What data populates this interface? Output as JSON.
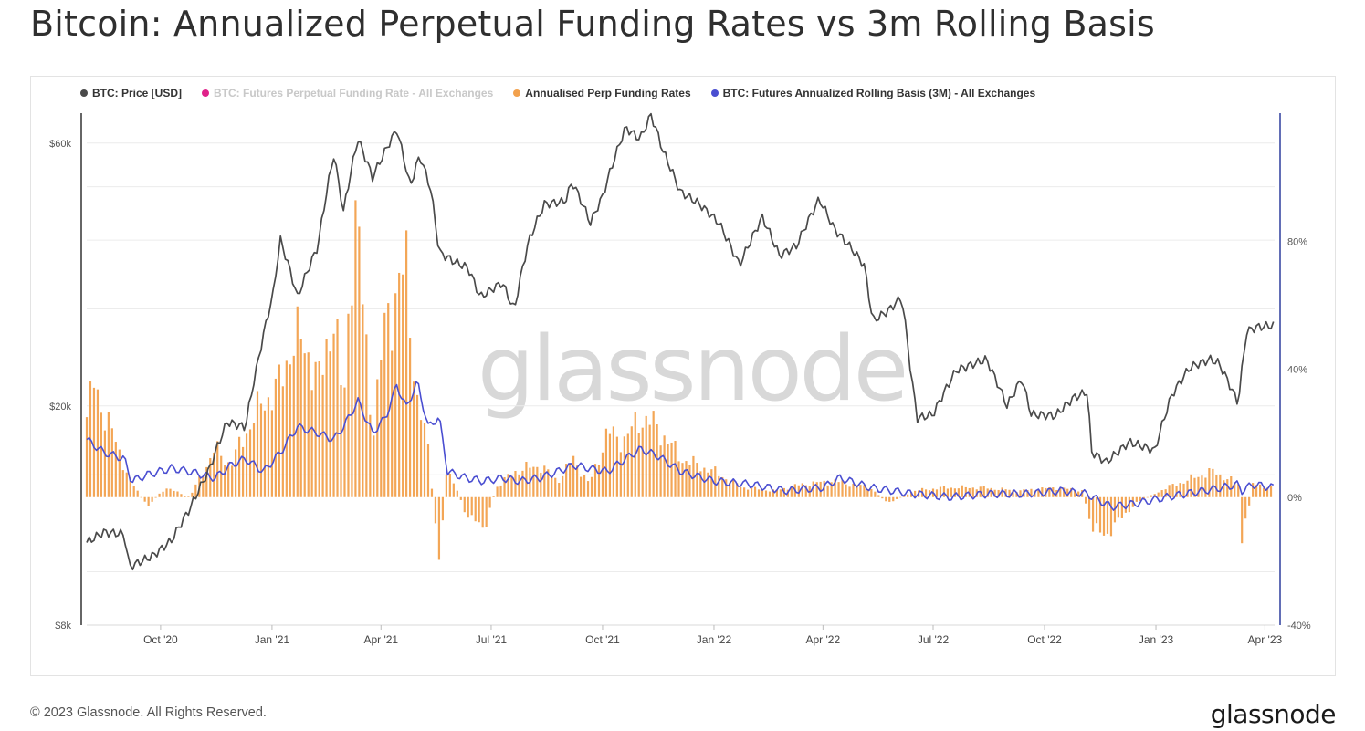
{
  "title": "Bitcoin: Annualized Perpetual Funding Rates vs 3m Rolling Basis",
  "legend": [
    {
      "label": "BTC: Price [USD]",
      "color": "#4a4a4a",
      "disabled": false
    },
    {
      "label": "BTC: Futures Perpetual Funding Rate - All Exchanges",
      "color": "#e0218a",
      "disabled": true
    },
    {
      "label": "Annualised Perp Funding Rates",
      "color": "#f2a14d",
      "disabled": false
    },
    {
      "label": "BTC: Futures Annualized Rolling Basis (3M) - All Exchanges",
      "color": "#4a4ed1",
      "disabled": false
    }
  ],
  "watermark": "glassnode",
  "footer": {
    "copyright": "© 2023 Glassnode. All Rights Reserved.",
    "logo": "glassnode"
  },
  "chart_data": {
    "type": "line",
    "x_ticks": [
      "Oct '20",
      "Jan '21",
      "Apr '21",
      "Jul '21",
      "Oct '21",
      "Jan '22",
      "Apr '22",
      "Jul '22",
      "Oct '22",
      "Jan '23",
      "Apr '23"
    ],
    "x_tick_dates": [
      "2020-10-01",
      "2021-01-01",
      "2021-04-01",
      "2021-07-01",
      "2021-10-01",
      "2022-01-01",
      "2022-04-01",
      "2022-07-01",
      "2022-10-01",
      "2023-01-01",
      "2023-04-01"
    ],
    "xlim": [
      "2020-08-01",
      "2023-04-09"
    ],
    "y_left": {
      "ticks": [
        "$8k",
        "$20k",
        "$60k"
      ],
      "tick_values": [
        8000,
        20000,
        60000
      ],
      "scale": "log",
      "ylim": [
        8000,
        68000
      ]
    },
    "y_right": {
      "ticks": [
        "-40%",
        "0%",
        "40%",
        "80%"
      ],
      "tick_values": [
        -40,
        0,
        40,
        80
      ],
      "ylim": [
        -40,
        120
      ]
    },
    "series": [
      {
        "name": "BTC: Price [USD]",
        "axis": "left",
        "style": "line",
        "color": "#4a4a4a",
        "x": [
          "2020-08-01",
          "2020-08-15",
          "2020-09-01",
          "2020-09-05",
          "2020-09-25",
          "2020-10-10",
          "2020-10-25",
          "2020-11-10",
          "2020-11-25",
          "2020-12-10",
          "2020-12-20",
          "2021-01-02",
          "2021-01-08",
          "2021-01-22",
          "2021-02-08",
          "2021-02-21",
          "2021-03-01",
          "2021-03-13",
          "2021-03-25",
          "2021-04-14",
          "2021-04-25",
          "2021-05-03",
          "2021-05-12",
          "2021-05-19",
          "2021-06-01",
          "2021-06-12",
          "2021-06-22",
          "2021-07-10",
          "2021-07-20",
          "2021-08-01",
          "2021-08-14",
          "2021-08-31",
          "2021-09-06",
          "2021-09-21",
          "2021-10-01",
          "2021-10-20",
          "2021-11-01",
          "2021-11-10",
          "2021-11-20",
          "2021-12-04",
          "2021-12-20",
          "2022-01-05",
          "2022-01-22",
          "2022-02-10",
          "2022-02-24",
          "2022-03-10",
          "2022-03-29",
          "2022-04-10",
          "2022-04-25",
          "2022-05-05",
          "2022-05-12",
          "2022-05-25",
          "2022-06-05",
          "2022-06-13",
          "2022-06-18",
          "2022-07-01",
          "2022-07-20",
          "2022-08-14",
          "2022-08-31",
          "2022-09-12",
          "2022-09-20",
          "2022-10-10",
          "2022-10-25",
          "2022-11-05",
          "2022-11-09",
          "2022-11-21",
          "2022-12-10",
          "2022-12-31",
          "2023-01-14",
          "2023-01-29",
          "2023-02-15",
          "2023-02-22",
          "2023-03-10",
          "2023-03-17",
          "2023-03-25",
          "2023-04-08"
        ],
        "y": [
          11300,
          11800,
          11700,
          10200,
          10700,
          11400,
          13000,
          15300,
          18700,
          18300,
          23800,
          32000,
          40000,
          31500,
          39000,
          57000,
          45000,
          61000,
          52000,
          63500,
          50000,
          57000,
          49500,
          38000,
          36500,
          35600,
          31500,
          33500,
          29800,
          39800,
          46500,
          47000,
          51000,
          43000,
          48000,
          64000,
          61000,
          67500,
          58000,
          49000,
          46500,
          43000,
          36000,
          44000,
          37500,
          39000,
          47500,
          42000,
          38500,
          36000,
          28500,
          29800,
          31500,
          22500,
          19000,
          19300,
          23200,
          24300,
          20000,
          22400,
          19300,
          19200,
          20700,
          21200,
          16500,
          15800,
          17200,
          16600,
          20900,
          23500,
          24300,
          23900,
          20200,
          27300,
          27800,
          28000
        ]
      },
      {
        "name": "Annualised Perp Funding Rates",
        "axis": "right",
        "style": "bar",
        "color": "#f2a14d",
        "x": [
          "2020-08-01",
          "2020-08-07",
          "2020-08-20",
          "2020-09-05",
          "2020-09-20",
          "2020-10-05",
          "2020-10-25",
          "2020-11-15",
          "2020-11-28",
          "2020-12-10",
          "2020-12-25",
          "2021-01-08",
          "2021-01-18",
          "2021-02-01",
          "2021-02-10",
          "2021-02-21",
          "2021-03-01",
          "2021-03-10",
          "2021-03-25",
          "2021-04-05",
          "2021-04-14",
          "2021-04-22",
          "2021-05-01",
          "2021-05-10",
          "2021-05-19",
          "2021-05-26",
          "2021-06-10",
          "2021-06-25",
          "2021-07-05",
          "2021-07-20",
          "2021-08-10",
          "2021-08-25",
          "2021-09-07",
          "2021-09-20",
          "2021-10-05",
          "2021-10-20",
          "2021-11-01",
          "2021-11-15",
          "2021-12-05",
          "2022-01-01",
          "2022-01-25",
          "2022-02-20",
          "2022-03-15",
          "2022-04-10",
          "2022-05-10",
          "2022-05-25",
          "2022-06-15",
          "2022-07-10",
          "2022-08-10",
          "2022-09-10",
          "2022-10-10",
          "2022-11-01",
          "2022-11-10",
          "2022-11-20",
          "2022-12-15",
          "2023-01-10",
          "2023-01-25",
          "2023-02-15",
          "2023-03-01",
          "2023-03-10",
          "2023-03-13",
          "2023-03-22",
          "2023-04-08"
        ],
        "y": [
          25,
          35,
          22,
          6,
          -3,
          3,
          0,
          15,
          10,
          20,
          30,
          35,
          50,
          45,
          35,
          60,
          25,
          95,
          20,
          55,
          65,
          70,
          30,
          15,
          -20,
          10,
          -5,
          -10,
          3,
          8,
          10,
          5,
          12,
          4,
          20,
          18,
          25,
          22,
          12,
          8,
          3,
          2,
          4,
          5,
          3,
          -2,
          2,
          3,
          3,
          2,
          3,
          2,
          -10,
          -12,
          -2,
          3,
          5,
          8,
          6,
          4,
          -15,
          4,
          3
        ]
      },
      {
        "name": "BTC: Futures Annualized Rolling Basis (3M) - All Exchanges",
        "axis": "right",
        "style": "line",
        "color": "#4a4ed1",
        "x": [
          "2020-08-01",
          "2020-08-15",
          "2020-09-01",
          "2020-09-07",
          "2020-09-20",
          "2020-10-10",
          "2020-10-25",
          "2020-11-15",
          "2020-11-28",
          "2020-12-10",
          "2020-12-25",
          "2021-01-08",
          "2021-01-22",
          "2021-02-08",
          "2021-02-21",
          "2021-03-01",
          "2021-03-13",
          "2021-03-25",
          "2021-04-05",
          "2021-04-14",
          "2021-04-22",
          "2021-05-01",
          "2021-05-10",
          "2021-05-19",
          "2021-05-26",
          "2021-06-10",
          "2021-06-25",
          "2021-07-10",
          "2021-07-25",
          "2021-08-10",
          "2021-08-25",
          "2021-09-07",
          "2021-09-20",
          "2021-10-05",
          "2021-10-20",
          "2021-11-01",
          "2021-11-15",
          "2021-12-05",
          "2022-01-01",
          "2022-02-01",
          "2022-03-01",
          "2022-04-01",
          "2022-04-15",
          "2022-05-10",
          "2022-06-15",
          "2022-07-15",
          "2022-08-15",
          "2022-09-15",
          "2022-10-15",
          "2022-11-05",
          "2022-11-10",
          "2022-11-25",
          "2022-12-15",
          "2023-01-10",
          "2023-01-25",
          "2023-02-10",
          "2023-02-25",
          "2023-03-10",
          "2023-03-13",
          "2023-03-22",
          "2023-04-08"
        ],
        "y": [
          18,
          14,
          12,
          5,
          7,
          9,
          8,
          6,
          10,
          12,
          8,
          14,
          22,
          20,
          18,
          22,
          30,
          20,
          25,
          35,
          28,
          36,
          22,
          25,
          8,
          6,
          5,
          6,
          5,
          6,
          8,
          10,
          9,
          8,
          12,
          15,
          13,
          8,
          5,
          4,
          2,
          3,
          6,
          3,
          1,
          0,
          1,
          1,
          2,
          1,
          0,
          -3,
          -2,
          0,
          1,
          2,
          3,
          4,
          2,
          4,
          3
        ]
      }
    ]
  }
}
